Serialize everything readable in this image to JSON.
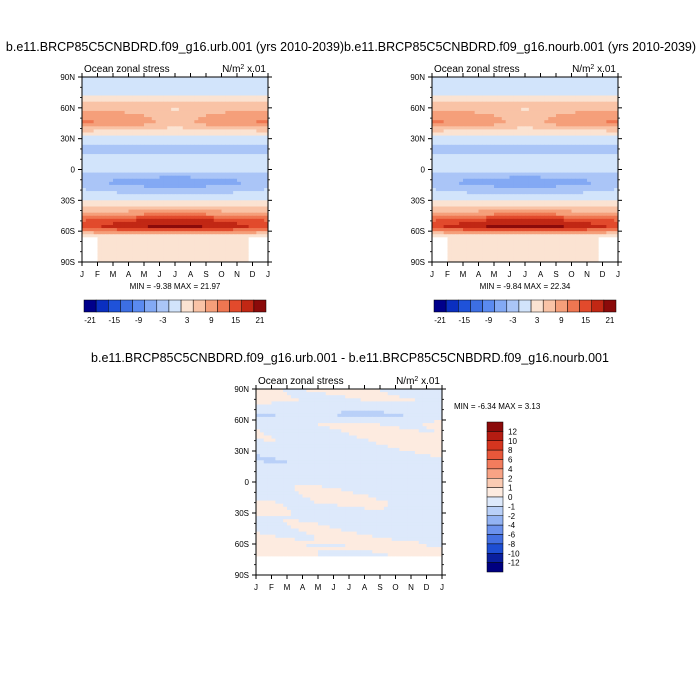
{
  "chart_data": [
    {
      "type": "heatmap",
      "title": "b.e11.BRCP85C5CNBDRD.f09_g16.urb.001 (yrs 2010-2039)",
      "left_label": "Ocean zonal stress",
      "units_base": "N/m",
      "units_exp": "2",
      "units_tail": " x.01",
      "x_ticks": [
        "J",
        "F",
        "M",
        "A",
        "M",
        "J",
        "J",
        "A",
        "S",
        "O",
        "N",
        "D",
        "J"
      ],
      "y_ticks": [
        "90N",
        "60N",
        "30N",
        "0",
        "30S",
        "60S",
        "90S"
      ],
      "y_values": [
        90,
        60,
        30,
        0,
        -30,
        -60,
        -90
      ],
      "minmax_label": "MIN = -9.38  MAX =  21.97",
      "min": -9.38,
      "max": 21.97,
      "colorbar_levels": [
        -21,
        -18,
        -15,
        -12,
        -9,
        -6,
        -3,
        0,
        3,
        6,
        9,
        12,
        15,
        18,
        21
      ],
      "colorbar_labels": [
        "-21",
        "-15",
        "-9",
        "-3",
        "3",
        "9",
        "15",
        "21"
      ],
      "colorbar_colors": [
        "#00008b",
        "#0a2fc0",
        "#1f52d9",
        "#3d6fe3",
        "#5a8af0",
        "#83a9f4",
        "#aac5f7",
        "#d2e4fb",
        "#fbe3d2",
        "#f9c3a6",
        "#f59f7a",
        "#ef7651",
        "#e24a2c",
        "#c12714",
        "#8b0a0a"
      ],
      "zonal_profile": [
        [
          90,
          0
        ],
        [
          82,
          -3
        ],
        [
          76,
          -1
        ],
        [
          70,
          1
        ],
        [
          62,
          4
        ],
        [
          52,
          7.5
        ],
        [
          45,
          8.5
        ],
        [
          38,
          3
        ],
        [
          30,
          -1
        ],
        [
          22,
          -4
        ],
        [
          15,
          -3
        ],
        [
          8,
          -1
        ],
        [
          2,
          -2
        ],
        [
          -5,
          -4
        ],
        [
          -12,
          -7
        ],
        [
          -20,
          -4
        ],
        [
          -28,
          -1
        ],
        [
          -35,
          2
        ],
        [
          -42,
          7
        ],
        [
          -50,
          15
        ],
        [
          -56,
          17
        ],
        [
          -62,
          6
        ],
        [
          -66,
          0
        ],
        [
          -90,
          0
        ]
      ]
    },
    {
      "type": "heatmap",
      "title": "b.e11.BRCP85C5CNBDRD.f09_g16.nourb.001 (yrs 2010-2039)",
      "left_label": "Ocean zonal stress",
      "units_base": "N/m",
      "units_exp": "2",
      "units_tail": " x.01",
      "x_ticks": [
        "J",
        "F",
        "M",
        "A",
        "M",
        "J",
        "J",
        "A",
        "S",
        "O",
        "N",
        "D",
        "J"
      ],
      "y_ticks": [
        "90N",
        "60N",
        "30N",
        "0",
        "30S",
        "60S",
        "90S"
      ],
      "y_values": [
        90,
        60,
        30,
        0,
        -30,
        -60,
        -90
      ],
      "minmax_label": "MIN = -9.84  MAX =  22.34",
      "min": -9.84,
      "max": 22.34,
      "colorbar_levels": [
        -21,
        -18,
        -15,
        -12,
        -9,
        -6,
        -3,
        0,
        3,
        6,
        9,
        12,
        15,
        18,
        21
      ],
      "colorbar_labels": [
        "-21",
        "-15",
        "-9",
        "-3",
        "3",
        "9",
        "15",
        "21"
      ],
      "colorbar_colors": [
        "#00008b",
        "#0a2fc0",
        "#1f52d9",
        "#3d6fe3",
        "#5a8af0",
        "#83a9f4",
        "#aac5f7",
        "#d2e4fb",
        "#fbe3d2",
        "#f9c3a6",
        "#f59f7a",
        "#ef7651",
        "#e24a2c",
        "#c12714",
        "#8b0a0a"
      ],
      "zonal_profile": [
        [
          90,
          0
        ],
        [
          82,
          -3
        ],
        [
          76,
          -1
        ],
        [
          70,
          1
        ],
        [
          62,
          4
        ],
        [
          52,
          7.5
        ],
        [
          45,
          8.5
        ],
        [
          38,
          3
        ],
        [
          30,
          -1
        ],
        [
          22,
          -4
        ],
        [
          15,
          -3
        ],
        [
          8,
          -1
        ],
        [
          2,
          -2
        ],
        [
          -5,
          -4
        ],
        [
          -12,
          -7
        ],
        [
          -20,
          -4
        ],
        [
          -28,
          -1
        ],
        [
          -35,
          2
        ],
        [
          -42,
          7
        ],
        [
          -50,
          15
        ],
        [
          -56,
          17.5
        ],
        [
          -62,
          6
        ],
        [
          -66,
          0
        ],
        [
          -90,
          0
        ]
      ]
    },
    {
      "type": "heatmap",
      "title": "b.e11.BRCP85C5CNBDRD.f09_g16.urb.001 - b.e11.BRCP85C5CNBDRD.f09_g16.nourb.001",
      "left_label": "Ocean zonal stress",
      "units_base": "N/m",
      "units_exp": "2",
      "units_tail": " x.01",
      "x_ticks": [
        "J",
        "F",
        "M",
        "A",
        "M",
        "J",
        "J",
        "A",
        "S",
        "O",
        "N",
        "D",
        "J"
      ],
      "y_ticks": [
        "90N",
        "60N",
        "30N",
        "0",
        "30S",
        "60S",
        "90S"
      ],
      "y_values": [
        90,
        60,
        30,
        0,
        -30,
        -60,
        -90
      ],
      "minmax_label": "MIN =  -6.34  MAX =   3.13",
      "min": -6.34,
      "max": 3.13,
      "colorbar_levels": [
        12,
        10,
        8,
        6,
        4,
        2,
        1,
        0,
        -1,
        -2,
        -4,
        -6,
        -8,
        -10,
        -12
      ],
      "colorbar_labels": [
        "12",
        "10",
        "8",
        "6",
        "4",
        "2",
        "1",
        "0",
        "-1",
        "-2",
        "-4",
        "-6",
        "-8",
        "-10",
        "-12"
      ],
      "colorbar_colors": [
        "#8b0a0a",
        "#b51c12",
        "#d5351f",
        "#e8573a",
        "#f27c5d",
        "#f8a385",
        "#fbcbb3",
        "#fdebe0",
        "#dde9fb",
        "#b9d0f8",
        "#93b3f3",
        "#6c92ed",
        "#4470e2",
        "#1e4ed3",
        "#0a1f9e",
        "#000080"
      ],
      "zonal_profile": [
        [
          90,
          0
        ],
        [
          80,
          0
        ],
        [
          72,
          0
        ],
        [
          64,
          -0.5
        ],
        [
          56,
          0.5
        ],
        [
          40,
          0.3
        ],
        [
          20,
          -0.3
        ],
        [
          0,
          -0.3
        ],
        [
          -20,
          0.2
        ],
        [
          -35,
          -0.3
        ],
        [
          -50,
          0.3
        ],
        [
          -60,
          0.8
        ],
        [
          -66,
          0.2
        ],
        [
          -72,
          0
        ],
        [
          -90,
          0
        ]
      ]
    }
  ]
}
